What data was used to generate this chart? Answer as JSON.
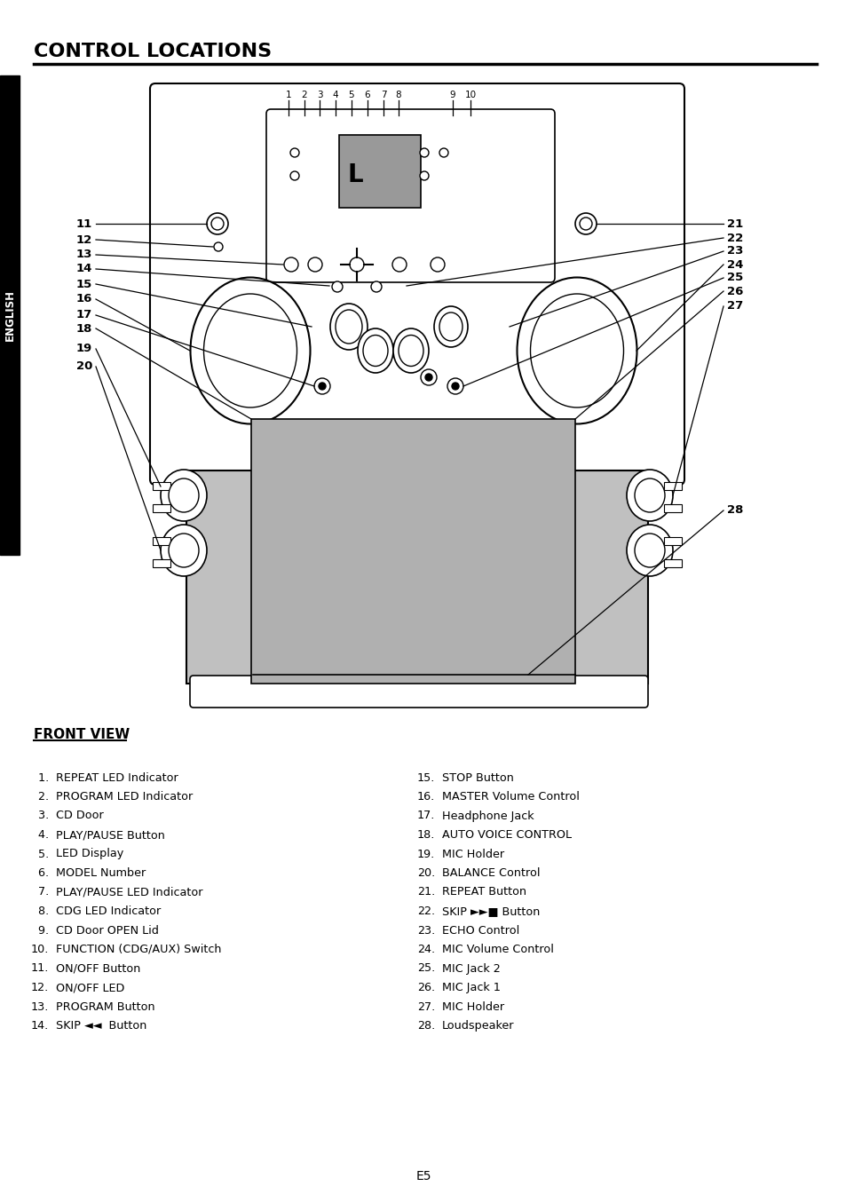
{
  "title": "CONTROL LOCATIONS",
  "sidebar_text": "ENGLISH",
  "page_number": "E5",
  "front_view_title": "FRONT VIEW",
  "left_items": [
    [
      " 1.",
      "REPEAT LED Indicator"
    ],
    [
      " 2.",
      "PROGRAM LED Indicator"
    ],
    [
      " 3.",
      "CD Door"
    ],
    [
      " 4.",
      "PLAY/PAUSE Button"
    ],
    [
      " 5.",
      "LED Display"
    ],
    [
      " 6.",
      "MODEL Number"
    ],
    [
      " 7.",
      "PLAY/PAUSE LED Indicator"
    ],
    [
      " 8.",
      "CDG LED Indicator"
    ],
    [
      " 9.",
      "CD Door OPEN Lid"
    ],
    [
      "10.",
      "FUNCTION (CDG/AUX) Switch"
    ],
    [
      "11.",
      "ON/OFF Button"
    ],
    [
      "12.",
      "ON/OFF LED"
    ],
    [
      "13.",
      "PROGRAM Button"
    ],
    [
      "14.",
      "SKIP ◄◄  Button"
    ]
  ],
  "right_items": [
    [
      "15.",
      "STOP Button"
    ],
    [
      "16.",
      "MASTER Volume Control"
    ],
    [
      "17.",
      "Headphone Jack"
    ],
    [
      "18.",
      "AUTO VOICE CONTROL"
    ],
    [
      "19.",
      "MIC Holder"
    ],
    [
      "20.",
      "BALANCE Control"
    ],
    [
      "21.",
      "REPEAT Button"
    ],
    [
      "22.",
      "SKIP ►►■ Button"
    ],
    [
      "23.",
      "ECHO Control"
    ],
    [
      "24.",
      "MIC Volume Control"
    ],
    [
      "25.",
      "MIC Jack 2"
    ],
    [
      "26.",
      "MIC Jack 1"
    ],
    [
      "27.",
      "MIC Holder"
    ],
    [
      "28.",
      "Loudspeaker"
    ]
  ],
  "bg_color": "#ffffff",
  "text_color": "#000000",
  "sidebar_bg": "#000000",
  "sidebar_fg": "#ffffff"
}
